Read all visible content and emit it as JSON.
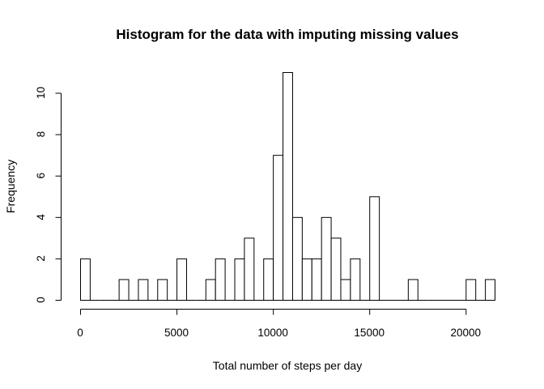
{
  "chart_data": {
    "type": "bar",
    "title": "Histogram for the data with imputing missing values",
    "xlabel": "Total number of steps per day",
    "ylabel": "Frequency",
    "bin_width": 500,
    "x_start": 0,
    "counts": [
      2,
      0,
      0,
      0,
      1,
      0,
      1,
      0,
      1,
      0,
      2,
      0,
      0,
      1,
      2,
      0,
      2,
      3,
      0,
      2,
      7,
      11,
      4,
      2,
      2,
      4,
      3,
      1,
      2,
      0,
      5,
      0,
      0,
      0,
      1,
      0,
      0,
      0,
      0,
      0,
      1,
      0,
      1
    ],
    "xlim": [
      0,
      21500
    ],
    "ylim": [
      0,
      11
    ],
    "x_ticks": [
      0,
      5000,
      10000,
      15000,
      20000
    ],
    "x_tick_labels": [
      "0",
      "5000",
      "10000",
      "15000",
      "20000"
    ],
    "y_ticks": [
      0,
      2,
      4,
      6,
      8,
      10
    ],
    "y_tick_labels": [
      "0",
      "2",
      "4",
      "6",
      "8",
      "10"
    ],
    "grid": false,
    "bar_fill": "#ffffff",
    "bar_stroke": "#000000"
  }
}
